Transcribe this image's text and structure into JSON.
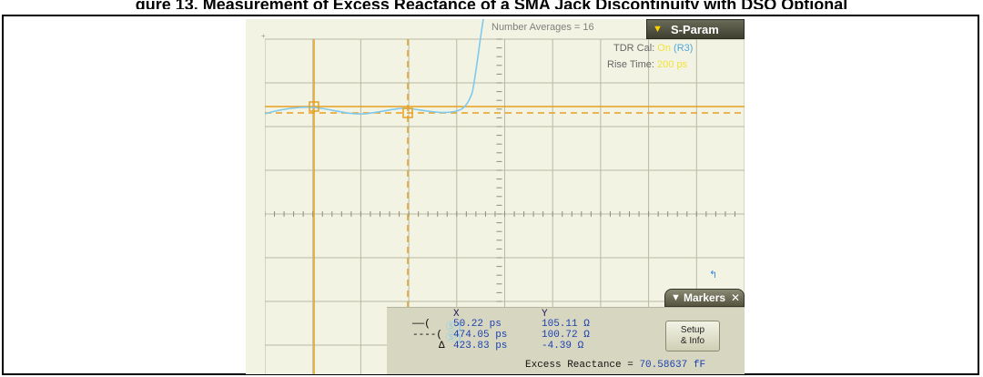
{
  "page": {
    "headline": "gure 13. Measurement of Excess Reactance of a SMA Jack Discontinuity with DSO Optional"
  },
  "scope": {
    "axis_mark": "+",
    "averages_label": "Number Averages =",
    "averages_value": "16",
    "menu_title": "S-Param",
    "tdr_cal_label": "TDR Cal:",
    "tdr_cal_value": "On",
    "tdr_cal_ref": "(R3)",
    "rise_time_label": "Rise Time:",
    "rise_time_value": "200 ps",
    "pointer_icon": "cursor-arrow-icon",
    "colors": {
      "grid": "#b9b9a6",
      "trace": "#7ec9ee",
      "cursor": "#e8a020",
      "panel": "#d7d7c1",
      "value_text": "#1a3fb0"
    }
  },
  "markers": {
    "tab_label": "Markers",
    "col_x": "X",
    "col_y": "Y",
    "rows": [
      {
        "symbol": "——(",
        "badge": "Ⓢ)",
        "x": "50.22 ps",
        "y": "105.11 Ω"
      },
      {
        "symbol": "----(",
        "badge": "Ⓢ)",
        "x": "474.05 ps",
        "y": "100.72 Ω"
      },
      {
        "symbol": "Δ",
        "badge": "",
        "x": "423.83 ps",
        "y": "-4.39 Ω"
      }
    ],
    "setup_line1": "Setup",
    "setup_line2": "& Info",
    "excess_label": "Excess Reactance =",
    "excess_value": "70.58637 fF"
  }
}
